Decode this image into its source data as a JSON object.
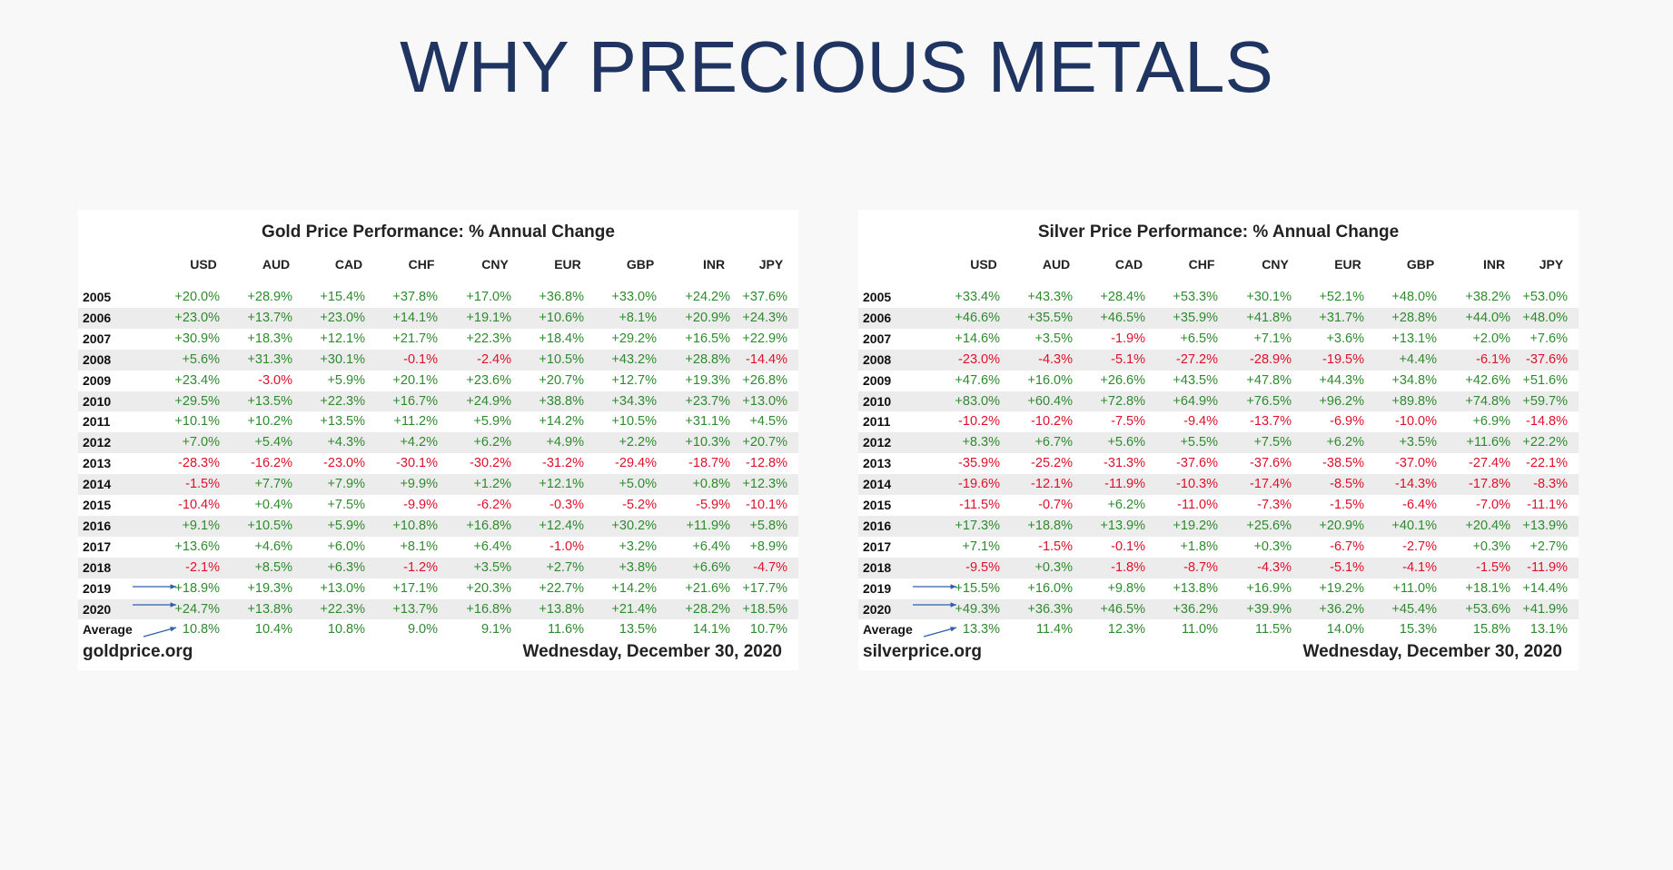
{
  "title": "WHY PRECIOUS METALS",
  "colors": {
    "title": "#1f3460",
    "positive": "#2e8b2e",
    "negative": "#e0102a",
    "arrow": "#2f5fa8"
  },
  "currencies": [
    "USD",
    "AUD",
    "CAD",
    "CHF",
    "CNY",
    "EUR",
    "GBP",
    "INR",
    "JPY"
  ],
  "tables": [
    {
      "id": "gold",
      "title": "Gold Price Performance: % Annual Change",
      "source": "goldprice.org",
      "date": "Wednesday, December 30, 2020",
      "arrow_rows": [
        "2019",
        "2020",
        "Average"
      ],
      "rows": [
        {
          "label": "2005",
          "values": [
            "+20.0%",
            "+28.9%",
            "+15.4%",
            "+37.8%",
            "+17.0%",
            "+36.8%",
            "+33.0%",
            "+24.2%",
            "+37.6%"
          ]
        },
        {
          "label": "2006",
          "values": [
            "+23.0%",
            "+13.7%",
            "+23.0%",
            "+14.1%",
            "+19.1%",
            "+10.6%",
            "+8.1%",
            "+20.9%",
            "+24.3%"
          ]
        },
        {
          "label": "2007",
          "values": [
            "+30.9%",
            "+18.3%",
            "+12.1%",
            "+21.7%",
            "+22.3%",
            "+18.4%",
            "+29.2%",
            "+16.5%",
            "+22.9%"
          ]
        },
        {
          "label": "2008",
          "values": [
            "+5.6%",
            "+31.3%",
            "+30.1%",
            "-0.1%",
            "-2.4%",
            "+10.5%",
            "+43.2%",
            "+28.8%",
            "-14.4%"
          ]
        },
        {
          "label": "2009",
          "values": [
            "+23.4%",
            "-3.0%",
            "+5.9%",
            "+20.1%",
            "+23.6%",
            "+20.7%",
            "+12.7%",
            "+19.3%",
            "+26.8%"
          ]
        },
        {
          "label": "2010",
          "values": [
            "+29.5%",
            "+13.5%",
            "+22.3%",
            "+16.7%",
            "+24.9%",
            "+38.8%",
            "+34.3%",
            "+23.7%",
            "+13.0%"
          ]
        },
        {
          "label": "2011",
          "values": [
            "+10.1%",
            "+10.2%",
            "+13.5%",
            "+11.2%",
            "+5.9%",
            "+14.2%",
            "+10.5%",
            "+31.1%",
            "+4.5%"
          ]
        },
        {
          "label": "2012",
          "values": [
            "+7.0%",
            "+5.4%",
            "+4.3%",
            "+4.2%",
            "+6.2%",
            "+4.9%",
            "+2.2%",
            "+10.3%",
            "+20.7%"
          ]
        },
        {
          "label": "2013",
          "values": [
            "-28.3%",
            "-16.2%",
            "-23.0%",
            "-30.1%",
            "-30.2%",
            "-31.2%",
            "-29.4%",
            "-18.7%",
            "-12.8%"
          ]
        },
        {
          "label": "2014",
          "values": [
            "-1.5%",
            "+7.7%",
            "+7.9%",
            "+9.9%",
            "+1.2%",
            "+12.1%",
            "+5.0%",
            "+0.8%",
            "+12.3%"
          ]
        },
        {
          "label": "2015",
          "values": [
            "-10.4%",
            "+0.4%",
            "+7.5%",
            "-9.9%",
            "-6.2%",
            "-0.3%",
            "-5.2%",
            "-5.9%",
            "-10.1%"
          ]
        },
        {
          "label": "2016",
          "values": [
            "+9.1%",
            "+10.5%",
            "+5.9%",
            "+10.8%",
            "+16.8%",
            "+12.4%",
            "+30.2%",
            "+11.9%",
            "+5.8%"
          ]
        },
        {
          "label": "2017",
          "values": [
            "+13.6%",
            "+4.6%",
            "+6.0%",
            "+8.1%",
            "+6.4%",
            "-1.0%",
            "+3.2%",
            "+6.4%",
            "+8.9%"
          ]
        },
        {
          "label": "2018",
          "values": [
            "-2.1%",
            "+8.5%",
            "+6.3%",
            "-1.2%",
            "+3.5%",
            "+2.7%",
            "+3.8%",
            "+6.6%",
            "-4.7%"
          ]
        },
        {
          "label": "2019",
          "values": [
            "+18.9%",
            "+19.3%",
            "+13.0%",
            "+17.1%",
            "+20.3%",
            "+22.7%",
            "+14.2%",
            "+21.6%",
            "+17.7%"
          ]
        },
        {
          "label": "2020",
          "values": [
            "+24.7%",
            "+13.8%",
            "+22.3%",
            "+13.7%",
            "+16.8%",
            "+13.8%",
            "+21.4%",
            "+28.2%",
            "+18.5%"
          ]
        },
        {
          "label": "Average",
          "values": [
            "10.8%",
            "10.4%",
            "10.8%",
            "9.0%",
            "9.1%",
            "11.6%",
            "13.5%",
            "14.1%",
            "10.7%"
          ]
        }
      ]
    },
    {
      "id": "silver",
      "title": "Silver Price Performance: % Annual Change",
      "source": "silverprice.org",
      "date": "Wednesday, December 30, 2020",
      "arrow_rows": [
        "2019",
        "2020",
        "Average"
      ],
      "rows": [
        {
          "label": "2005",
          "values": [
            "+33.4%",
            "+43.3%",
            "+28.4%",
            "+53.3%",
            "+30.1%",
            "+52.1%",
            "+48.0%",
            "+38.2%",
            "+53.0%"
          ]
        },
        {
          "label": "2006",
          "values": [
            "+46.6%",
            "+35.5%",
            "+46.5%",
            "+35.9%",
            "+41.8%",
            "+31.7%",
            "+28.8%",
            "+44.0%",
            "+48.0%"
          ]
        },
        {
          "label": "2007",
          "values": [
            "+14.6%",
            "+3.5%",
            "-1.9%",
            "+6.5%",
            "+7.1%",
            "+3.6%",
            "+13.1%",
            "+2.0%",
            "+7.6%"
          ]
        },
        {
          "label": "2008",
          "values": [
            "-23.0%",
            "-4.3%",
            "-5.1%",
            "-27.2%",
            "-28.9%",
            "-19.5%",
            "+4.4%",
            "-6.1%",
            "-37.6%"
          ]
        },
        {
          "label": "2009",
          "values": [
            "+47.6%",
            "+16.0%",
            "+26.6%",
            "+43.5%",
            "+47.8%",
            "+44.3%",
            "+34.8%",
            "+42.6%",
            "+51.6%"
          ]
        },
        {
          "label": "2010",
          "values": [
            "+83.0%",
            "+60.4%",
            "+72.8%",
            "+64.9%",
            "+76.5%",
            "+96.2%",
            "+89.8%",
            "+74.8%",
            "+59.7%"
          ]
        },
        {
          "label": "2011",
          "values": [
            "-10.2%",
            "-10.2%",
            "-7.5%",
            "-9.4%",
            "-13.7%",
            "-6.9%",
            "-10.0%",
            "+6.9%",
            "-14.8%"
          ]
        },
        {
          "label": "2012",
          "values": [
            "+8.3%",
            "+6.7%",
            "+5.6%",
            "+5.5%",
            "+7.5%",
            "+6.2%",
            "+3.5%",
            "+11.6%",
            "+22.2%"
          ]
        },
        {
          "label": "2013",
          "values": [
            "-35.9%",
            "-25.2%",
            "-31.3%",
            "-37.6%",
            "-37.6%",
            "-38.5%",
            "-37.0%",
            "-27.4%",
            "-22.1%"
          ]
        },
        {
          "label": "2014",
          "values": [
            "-19.6%",
            "-12.1%",
            "-11.9%",
            "-10.3%",
            "-17.4%",
            "-8.5%",
            "-14.3%",
            "-17.8%",
            "-8.3%"
          ]
        },
        {
          "label": "2015",
          "values": [
            "-11.5%",
            "-0.7%",
            "+6.2%",
            "-11.0%",
            "-7.3%",
            "-1.5%",
            "-6.4%",
            "-7.0%",
            "-11.1%"
          ]
        },
        {
          "label": "2016",
          "values": [
            "+17.3%",
            "+18.8%",
            "+13.9%",
            "+19.2%",
            "+25.6%",
            "+20.9%",
            "+40.1%",
            "+20.4%",
            "+13.9%"
          ]
        },
        {
          "label": "2017",
          "values": [
            "+7.1%",
            "-1.5%",
            "-0.1%",
            "+1.8%",
            "+0.3%",
            "-6.7%",
            "-2.7%",
            "+0.3%",
            "+2.7%"
          ]
        },
        {
          "label": "2018",
          "values": [
            "-9.5%",
            "+0.3%",
            "-1.8%",
            "-8.7%",
            "-4.3%",
            "-5.1%",
            "-4.1%",
            "-1.5%",
            "-11.9%"
          ]
        },
        {
          "label": "2019",
          "values": [
            "+15.5%",
            "+16.0%",
            "+9.8%",
            "+13.8%",
            "+16.9%",
            "+19.2%",
            "+11.0%",
            "+18.1%",
            "+14.4%"
          ]
        },
        {
          "label": "2020",
          "values": [
            "+49.3%",
            "+36.3%",
            "+46.5%",
            "+36.2%",
            "+39.9%",
            "+36.2%",
            "+45.4%",
            "+53.6%",
            "+41.9%"
          ]
        },
        {
          "label": "Average",
          "values": [
            "13.3%",
            "11.4%",
            "12.3%",
            "11.0%",
            "11.5%",
            "14.0%",
            "15.3%",
            "15.8%",
            "13.1%"
          ]
        }
      ]
    }
  ]
}
